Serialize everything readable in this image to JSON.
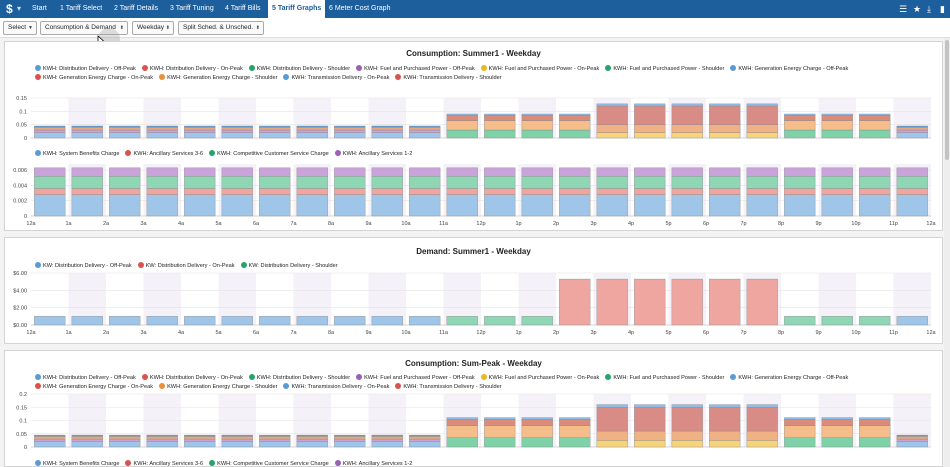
{
  "topbar": {
    "logo": "$",
    "tabs": [
      {
        "label": "Start",
        "active": false
      },
      {
        "label": "1 Tariff Select",
        "active": false
      },
      {
        "label": "2 Tariff Details",
        "active": false
      },
      {
        "label": "3 Tariff Tuning",
        "active": false
      },
      {
        "label": "4 Tariff Bills",
        "active": false
      },
      {
        "label": "5 Tariff Graphs",
        "active": true
      },
      {
        "label": "6 Meter Cost Graph",
        "active": false
      }
    ],
    "right_icons": [
      "list-icon",
      "star-icon",
      "download-icon",
      "panel-icon"
    ]
  },
  "controls": {
    "select": "Select",
    "mode": "Consumption & Demand",
    "daytype": "Weekday",
    "split": "Split Sched. & Unsched."
  },
  "hours": [
    "12a",
    "1a",
    "2a",
    "3a",
    "4a",
    "5a",
    "6a",
    "7a",
    "8a",
    "9a",
    "10a",
    "11a",
    "12p",
    "1p",
    "2p",
    "3p",
    "4p",
    "5p",
    "6p",
    "7p",
    "8p",
    "9p",
    "10p",
    "11p",
    "12a"
  ],
  "colors": {
    "blue": "#5b9bd5",
    "red": "#d9534f",
    "green": "#27a36b",
    "purple": "#9b5fb5",
    "yellow": "#e8b923",
    "orange": "#e8913a"
  },
  "chart_data": [
    {
      "type": "bar",
      "title": "Consumption: Summer1 - Weekday",
      "legend": [
        {
          "name": "KWH: Distribution Delivery - Off-Peak",
          "color": "#5b9bd5"
        },
        {
          "name": "KWH: Distribution Delivery - On-Peak",
          "color": "#d9534f"
        },
        {
          "name": "KWH: Distribution Delivery - Shoulder",
          "color": "#27a36b"
        },
        {
          "name": "KWH: Fuel and Purchased Power - Off-Peak",
          "color": "#9b5fb5"
        },
        {
          "name": "KWH: Fuel and Purchased Power - On-Peak",
          "color": "#e8b923"
        },
        {
          "name": "KWH: Fuel and Purchased Power - Shoulder",
          "color": "#27a36b"
        },
        {
          "name": "KWH: Generation Energy Charge - Off-Peak",
          "color": "#5b9bd5"
        },
        {
          "name": "KWH: Generation Energy Charge - On-Peak",
          "color": "#d9534f"
        },
        {
          "name": "KWH: Generation Energy Charge - Shoulder",
          "color": "#e8913a"
        },
        {
          "name": "KWH: Transmission Delivery - On-Peak",
          "color": "#5b9bd5"
        },
        {
          "name": "KWH: Transmission Delivery - Shoulder",
          "color": "#d9534f"
        }
      ],
      "yticks": [
        "0",
        "0.05",
        "0.1",
        "0.15"
      ],
      "ylim": [
        0,
        0.15
      ],
      "hour_profile": [
        "off",
        "off",
        "off",
        "off",
        "off",
        "off",
        "off",
        "off",
        "off",
        "off",
        "off",
        "sh",
        "sh",
        "sh",
        "sh",
        "on",
        "on",
        "on",
        "on",
        "on",
        "sh",
        "sh",
        "sh",
        "off"
      ],
      "stack_colors": {
        "off": [
          "#9fc5e8",
          "#c9a3d9",
          "#e8a87c",
          "#5b9bd5"
        ],
        "sh": [
          "#7fd1a8",
          "#f4bd8a",
          "#d98c7a",
          "#8fbde8"
        ],
        "on": [
          "#f7d37a",
          "#f0b184",
          "#d98b86",
          "#8fbde8"
        ]
      },
      "stack_values": {
        "off": [
          0.02,
          0.01,
          0.01,
          0.005
        ],
        "sh": [
          0.03,
          0.035,
          0.02,
          0.005
        ],
        "on": [
          0.02,
          0.03,
          0.07,
          0.008
        ]
      }
    },
    {
      "type": "bar",
      "title": "",
      "legend": [
        {
          "name": "KWH: System Benefits Charge",
          "color": "#5b9bd5"
        },
        {
          "name": "KWH: Ancillary Services 3-6",
          "color": "#d9534f"
        },
        {
          "name": "KWH: Competitive Customer Service Charge",
          "color": "#27a36b"
        },
        {
          "name": "KWH: Ancillary Services 1-2",
          "color": "#9b5fb5"
        }
      ],
      "yticks": [
        "0",
        "0.002",
        "0.004",
        "0.006"
      ],
      "ylim": [
        0,
        0.0068
      ],
      "stack_colors": [
        "#9fc5e8",
        "#f0a6a0",
        "#8fd6b4",
        "#c9a3d9"
      ],
      "stack_values": [
        0.0028,
        0.0008,
        0.0016,
        0.0011
      ]
    },
    {
      "type": "bar",
      "title": "Demand: Summer1 - Weekday",
      "legend": [
        {
          "name": "KW: Distribution Delivery - Off-Peak",
          "color": "#5b9bd5"
        },
        {
          "name": "KW: Distribution Delivery - On-Peak",
          "color": "#d9534f"
        },
        {
          "name": "KW: Distribution Delivery - Shoulder",
          "color": "#27a36b"
        }
      ],
      "yticks": [
        "$0.00",
        "$2.00",
        "$4.00",
        "$6.00"
      ],
      "ylim": [
        0,
        6
      ],
      "hour_profile": [
        "off",
        "off",
        "off",
        "off",
        "off",
        "off",
        "off",
        "off",
        "off",
        "off",
        "off",
        "sh",
        "sh",
        "sh",
        "on",
        "on",
        "on",
        "on",
        "on",
        "on",
        "sh",
        "sh",
        "sh",
        "off"
      ],
      "colors": {
        "off": "#9fc5e8",
        "sh": "#8fd6b4",
        "on": "#f0a6a0"
      },
      "values": {
        "off": 1.0,
        "sh": 1.0,
        "on": 5.3
      }
    },
    {
      "type": "bar",
      "title": "Consumption: Sum-Peak - Weekday",
      "legend": [
        {
          "name": "KWH: Distribution Delivery - Off-Peak",
          "color": "#5b9bd5"
        },
        {
          "name": "KWH: Distribution Delivery - On-Peak",
          "color": "#d9534f"
        },
        {
          "name": "KWH: Distribution Delivery - Shoulder",
          "color": "#27a36b"
        },
        {
          "name": "KWH: Fuel and Purchased Power - Off-Peak",
          "color": "#9b5fb5"
        },
        {
          "name": "KWH: Fuel and Purchased Power - On-Peak",
          "color": "#e8b923"
        },
        {
          "name": "KWH: Fuel and Purchased Power - Shoulder",
          "color": "#27a36b"
        },
        {
          "name": "KWH: Generation Energy Charge - Off-Peak",
          "color": "#5b9bd5"
        },
        {
          "name": "KWH: Generation Energy Charge - On-Peak",
          "color": "#d9534f"
        },
        {
          "name": "KWH: Generation Energy Charge - Shoulder",
          "color": "#e8913a"
        },
        {
          "name": "KWH: Transmission Delivery - On-Peak",
          "color": "#5b9bd5"
        },
        {
          "name": "KWH: Transmission Delivery - Shoulder",
          "color": "#d9534f"
        }
      ],
      "yticks": [
        "0",
        "0.05",
        "0.1",
        "0.15",
        "0.2"
      ],
      "ylim": [
        0,
        0.2
      ],
      "hour_profile": [
        "off",
        "off",
        "off",
        "off",
        "off",
        "off",
        "off",
        "off",
        "off",
        "off",
        "off",
        "sh",
        "sh",
        "sh",
        "sh",
        "on",
        "on",
        "on",
        "on",
        "on",
        "sh",
        "sh",
        "sh",
        "off"
      ],
      "stack_colors": {
        "off": [
          "#9fc5e8",
          "#c9a3d9",
          "#e8a87c",
          "#5b9bd5"
        ],
        "sh": [
          "#7fd1a8",
          "#f4bd8a",
          "#d98c7a",
          "#8fbde8"
        ],
        "on": [
          "#f7d37a",
          "#f0b184",
          "#d98b86",
          "#8fbde8"
        ]
      },
      "stack_values": {
        "off": [
          0.02,
          0.01,
          0.01,
          0.005
        ],
        "sh": [
          0.035,
          0.045,
          0.025,
          0.006
        ],
        "on": [
          0.025,
          0.035,
          0.09,
          0.01
        ]
      }
    }
  ],
  "bottom_legend": [
    {
      "name": "KWH: System Benefits Charge",
      "color": "#5b9bd5"
    },
    {
      "name": "KWH: Ancillary Services 3-6",
      "color": "#d9534f"
    },
    {
      "name": "KWH: Competitive Customer Service Charge",
      "color": "#27a36b"
    },
    {
      "name": "KWH: Ancillary Services 1-2",
      "color": "#9b5fb5"
    }
  ]
}
